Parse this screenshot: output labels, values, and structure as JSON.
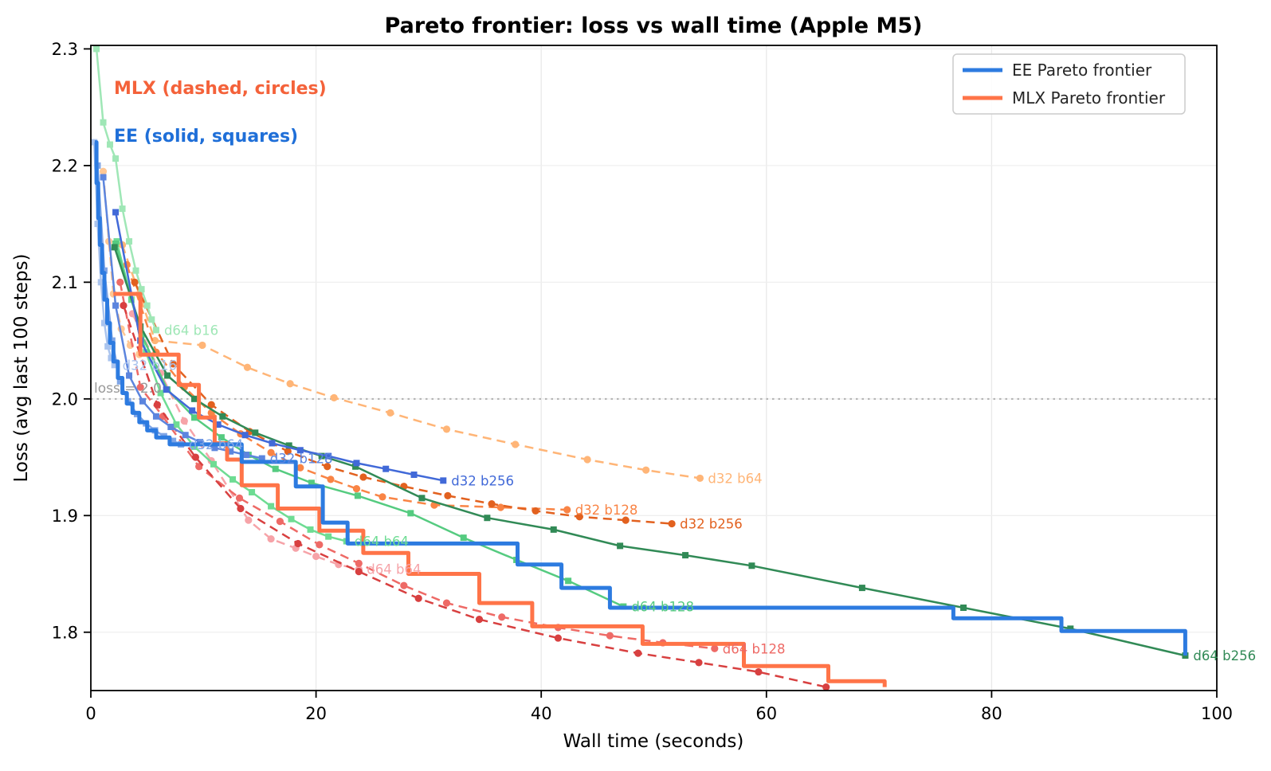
{
  "title": "Pareto frontier: loss vs wall time (Apple M5)",
  "annotations": {
    "mlx": {
      "text": "MLX (dashed, circles)",
      "color": "#f4623a"
    },
    "ee": {
      "text": "EE (solid, squares)",
      "color": "#1f6fd8"
    },
    "loss_line": {
      "text": "loss = 2.0",
      "color": "#999999",
      "y": 2.0
    }
  },
  "legend": [
    {
      "label": "EE Pareto frontier",
      "color": "#2d7be0"
    },
    {
      "label": "MLX Pareto frontier",
      "color": "#ff7448"
    }
  ],
  "chart_data": {
    "type": "line",
    "title": "Pareto frontier: loss vs wall time (Apple M5)",
    "xlabel": "Wall time (seconds)",
    "ylabel": "Loss (avg last 100 steps)",
    "xlim": [
      0,
      100
    ],
    "ylim": [
      1.75,
      2.303
    ],
    "xticks": [
      0,
      20,
      40,
      60,
      80,
      100
    ],
    "yticks": [
      1.8,
      1.9,
      2.0,
      2.1,
      2.2,
      2.3
    ],
    "grid": true,
    "legend_position": "upper right",
    "reference_line": {
      "y": 2.0,
      "style": "dotted",
      "color": "#b0b0b0"
    },
    "frontiers": [
      {
        "name": "MLX Pareto frontier",
        "color": "#ff7448",
        "width": 5,
        "steps": [
          [
            2.0,
            2.09
          ],
          [
            4.4,
            2.038
          ],
          [
            7.8,
            2.012
          ],
          [
            9.6,
            1.984
          ],
          [
            11.0,
            1.962
          ],
          [
            12.1,
            1.948
          ],
          [
            13.4,
            1.926
          ],
          [
            16.6,
            1.906
          ],
          [
            20.3,
            1.887
          ],
          [
            24.2,
            1.868
          ],
          [
            28.2,
            1.85
          ],
          [
            34.5,
            1.825
          ],
          [
            39.2,
            1.805
          ],
          [
            49.0,
            1.79
          ],
          [
            58.0,
            1.771
          ],
          [
            65.5,
            1.758
          ],
          [
            70.5,
            1.753
          ]
        ]
      },
      {
        "name": "EE Pareto frontier",
        "color": "#2d7be0",
        "width": 5,
        "steps": [
          [
            0.35,
            2.22
          ],
          [
            0.5,
            2.185
          ],
          [
            0.65,
            2.155
          ],
          [
            0.8,
            2.132
          ],
          [
            1.0,
            2.108
          ],
          [
            1.2,
            2.085
          ],
          [
            1.45,
            2.065
          ],
          [
            1.7,
            2.048
          ],
          [
            2.0,
            2.032
          ],
          [
            2.4,
            2.018
          ],
          [
            2.8,
            2.005
          ],
          [
            3.2,
            1.996
          ],
          [
            3.7,
            1.988
          ],
          [
            4.3,
            1.98
          ],
          [
            5.0,
            1.973
          ],
          [
            5.8,
            1.967
          ],
          [
            7.0,
            1.961
          ],
          [
            13.4,
            1.946
          ],
          [
            18.2,
            1.925
          ],
          [
            20.6,
            1.894
          ],
          [
            22.8,
            1.876
          ],
          [
            37.9,
            1.858
          ],
          [
            41.8,
            1.838
          ],
          [
            46.1,
            1.821
          ],
          [
            76.6,
            1.812
          ],
          [
            86.2,
            1.801
          ],
          [
            97.2,
            1.78
          ]
        ]
      }
    ],
    "series": [
      {
        "name": "MLX d32 b16",
        "label": "",
        "engine": "MLX",
        "style": "dashed",
        "marker": "circle",
        "color": "#ffc794",
        "points": [
          [
            1.1,
            2.195
          ],
          [
            1.6,
            2.135
          ],
          [
            2.0,
            2.09
          ],
          [
            2.7,
            2.06
          ],
          [
            3.5,
            2.046
          ],
          [
            4.3,
            2.038
          ]
        ]
      },
      {
        "name": "MLX d32 b64",
        "label": "d32 b64",
        "engine": "MLX",
        "style": "dashed",
        "marker": "circle",
        "color": "#ffb577",
        "points": [
          [
            2.8,
            2.132
          ],
          [
            5.7,
            2.05
          ],
          [
            9.9,
            2.046
          ],
          [
            13.9,
            2.027
          ],
          [
            17.7,
            2.013
          ],
          [
            21.6,
            2.001
          ],
          [
            26.6,
            1.988
          ],
          [
            31.6,
            1.974
          ],
          [
            37.7,
            1.961
          ],
          [
            44.1,
            1.948
          ],
          [
            49.3,
            1.939
          ],
          [
            54.1,
            1.932
          ]
        ]
      },
      {
        "name": "MLX d32 b128",
        "label": "d32 b128",
        "engine": "MLX",
        "style": "dashed",
        "marker": "circle",
        "color": "#f98445",
        "points": [
          [
            3.2,
            2.115
          ],
          [
            5.8,
            2.04
          ],
          [
            8.3,
            2.01
          ],
          [
            10.7,
            1.988
          ],
          [
            13.3,
            1.97
          ],
          [
            16.0,
            1.954
          ],
          [
            18.6,
            1.941
          ],
          [
            21.3,
            1.931
          ],
          [
            23.6,
            1.923
          ],
          [
            25.9,
            1.916
          ],
          [
            30.5,
            1.909
          ],
          [
            36.4,
            1.907
          ],
          [
            42.3,
            1.905
          ]
        ]
      },
      {
        "name": "MLX d32 b256",
        "label": "d32 b256",
        "engine": "MLX",
        "style": "dashed",
        "marker": "circle",
        "color": "#e2611f",
        "points": [
          [
            3.9,
            2.1
          ],
          [
            7.3,
            2.03
          ],
          [
            10.7,
            1.995
          ],
          [
            14.1,
            1.972
          ],
          [
            17.5,
            1.955
          ],
          [
            21.0,
            1.942
          ],
          [
            24.2,
            1.933
          ],
          [
            27.8,
            1.925
          ],
          [
            31.7,
            1.917
          ],
          [
            35.6,
            1.91
          ],
          [
            39.5,
            1.904
          ],
          [
            43.4,
            1.899
          ],
          [
            47.5,
            1.896
          ],
          [
            51.6,
            1.893
          ]
        ]
      },
      {
        "name": "MLX d64 b64",
        "label": "d64 b64",
        "engine": "MLX",
        "style": "dashed",
        "marker": "circle",
        "color": "#f6a3a8",
        "points": [
          [
            3.7,
            2.073
          ],
          [
            6.2,
            2.022
          ],
          [
            8.3,
            1.981
          ],
          [
            10.7,
            1.947
          ],
          [
            14.0,
            1.896
          ],
          [
            16.0,
            1.88
          ],
          [
            18.2,
            1.872
          ],
          [
            20.0,
            1.865
          ],
          [
            22.0,
            1.858
          ],
          [
            23.8,
            1.854
          ]
        ]
      },
      {
        "name": "MLX d64 b128",
        "label": "d64 b128",
        "engine": "MLX",
        "style": "dashed",
        "marker": "circle",
        "color": "#ee6a66",
        "points": [
          [
            2.6,
            2.1
          ],
          [
            4.4,
            2.01
          ],
          [
            6.4,
            1.985
          ],
          [
            9.6,
            1.942
          ],
          [
            13.2,
            1.915
          ],
          [
            16.8,
            1.895
          ],
          [
            20.3,
            1.875
          ],
          [
            23.8,
            1.859
          ],
          [
            27.8,
            1.84
          ],
          [
            31.6,
            1.825
          ],
          [
            36.5,
            1.813
          ],
          [
            41.5,
            1.804
          ],
          [
            46.1,
            1.797
          ],
          [
            50.8,
            1.791
          ],
          [
            55.4,
            1.786
          ]
        ]
      },
      {
        "name": "MLX d64 b256",
        "label": "",
        "engine": "MLX",
        "style": "dashed",
        "marker": "circle",
        "color": "#d84040",
        "points": [
          [
            2.9,
            2.08
          ],
          [
            5.9,
            1.995
          ],
          [
            9.3,
            1.95
          ],
          [
            13.3,
            1.906
          ],
          [
            18.4,
            1.876
          ],
          [
            23.8,
            1.852
          ],
          [
            29.1,
            1.829
          ],
          [
            34.5,
            1.811
          ],
          [
            41.5,
            1.795
          ],
          [
            48.6,
            1.782
          ],
          [
            54.0,
            1.774
          ],
          [
            59.3,
            1.766
          ],
          [
            65.3,
            1.753
          ]
        ]
      },
      {
        "name": "EE d64 b16",
        "label": "d64 b16",
        "engine": "EE",
        "style": "solid",
        "marker": "square",
        "color": "#9fe7b6",
        "points": [
          [
            0.5,
            2.3
          ],
          [
            1.1,
            2.237
          ],
          [
            1.7,
            2.218
          ],
          [
            2.2,
            2.206
          ],
          [
            2.8,
            2.163
          ],
          [
            3.4,
            2.135
          ],
          [
            4.0,
            2.11
          ],
          [
            4.5,
            2.094
          ],
          [
            5.0,
            2.08
          ],
          [
            5.4,
            2.068
          ],
          [
            5.8,
            2.059
          ]
        ]
      },
      {
        "name": "EE d64 b64",
        "label": "d64 b64",
        "engine": "EE",
        "style": "solid",
        "marker": "square",
        "color": "#6edc93",
        "points": [
          [
            2.3,
            2.135
          ],
          [
            3.6,
            2.085
          ],
          [
            4.9,
            2.04
          ],
          [
            6.2,
            2.005
          ],
          [
            7.6,
            1.978
          ],
          [
            9.2,
            1.959
          ],
          [
            10.9,
            1.944
          ],
          [
            12.6,
            1.931
          ],
          [
            14.3,
            1.92
          ],
          [
            16.0,
            1.908
          ],
          [
            17.8,
            1.897
          ],
          [
            19.5,
            1.888
          ],
          [
            21.1,
            1.882
          ],
          [
            22.7,
            1.878
          ]
        ]
      },
      {
        "name": "EE d64 b128",
        "label": "d64 b128",
        "engine": "EE",
        "style": "solid",
        "marker": "square",
        "color": "#55cb80",
        "points": [
          [
            2.2,
            2.133
          ],
          [
            4.5,
            2.055
          ],
          [
            6.8,
            2.008
          ],
          [
            9.2,
            1.984
          ],
          [
            11.6,
            1.967
          ],
          [
            14.0,
            1.952
          ],
          [
            16.4,
            1.94
          ],
          [
            19.6,
            1.928
          ],
          [
            23.7,
            1.917
          ],
          [
            28.4,
            1.902
          ],
          [
            33.1,
            1.881
          ],
          [
            37.8,
            1.862
          ],
          [
            42.4,
            1.844
          ],
          [
            47.3,
            1.822
          ]
        ]
      },
      {
        "name": "EE d64 b256",
        "label": "d64 b256",
        "engine": "EE",
        "style": "solid",
        "marker": "square",
        "color": "#318a56",
        "points": [
          [
            2.1,
            2.13
          ],
          [
            4.4,
            2.062
          ],
          [
            6.8,
            2.02
          ],
          [
            9.2,
            2.0
          ],
          [
            11.7,
            1.985
          ],
          [
            14.6,
            1.971
          ],
          [
            17.6,
            1.96
          ],
          [
            20.5,
            1.951
          ],
          [
            23.5,
            1.942
          ],
          [
            29.4,
            1.915
          ],
          [
            35.2,
            1.898
          ],
          [
            41.1,
            1.888
          ],
          [
            47.0,
            1.874
          ],
          [
            52.8,
            1.866
          ],
          [
            58.7,
            1.857
          ],
          [
            68.5,
            1.838
          ],
          [
            77.5,
            1.821
          ],
          [
            87.0,
            1.803
          ],
          [
            97.2,
            1.78
          ]
        ]
      },
      {
        "name": "EE d32 b16",
        "label": "d32 b16",
        "engine": "EE",
        "style": "solid",
        "marker": "square",
        "color": "#aac4ee",
        "points": [
          [
            0.3,
            2.22
          ],
          [
            0.6,
            2.15
          ],
          [
            0.9,
            2.1
          ],
          [
            1.2,
            2.065
          ],
          [
            1.5,
            2.045
          ],
          [
            1.8,
            2.035
          ],
          [
            2.1,
            2.029
          ]
        ]
      },
      {
        "name": "EE d32 b64",
        "label": "d32 b64",
        "engine": "EE",
        "style": "solid",
        "marker": "square",
        "color": "#7fa5e6",
        "points": [
          [
            0.6,
            2.2
          ],
          [
            1.2,
            2.11
          ],
          [
            1.9,
            2.05
          ],
          [
            2.6,
            2.015
          ],
          [
            3.3,
            1.998
          ],
          [
            4.1,
            1.987
          ],
          [
            4.9,
            1.979
          ],
          [
            5.7,
            1.973
          ],
          [
            6.5,
            1.968
          ],
          [
            7.3,
            1.964
          ],
          [
            8.0,
            1.961
          ]
        ]
      },
      {
        "name": "EE d32 b128",
        "label": "d32 b128",
        "engine": "EE",
        "style": "solid",
        "marker": "square",
        "color": "#5c85de",
        "points": [
          [
            1.1,
            2.19
          ],
          [
            2.2,
            2.08
          ],
          [
            3.4,
            2.02
          ],
          [
            4.6,
            1.998
          ],
          [
            5.8,
            1.985
          ],
          [
            7.1,
            1.976
          ],
          [
            8.4,
            1.969
          ],
          [
            9.7,
            1.963
          ],
          [
            11.0,
            1.958
          ],
          [
            12.4,
            1.955
          ],
          [
            13.8,
            1.952
          ],
          [
            15.2,
            1.949
          ]
        ]
      },
      {
        "name": "EE d32 b256",
        "label": "d32 b256",
        "engine": "EE",
        "style": "solid",
        "marker": "square",
        "color": "#4169d8",
        "points": [
          [
            2.2,
            2.16
          ],
          [
            4.4,
            2.05
          ],
          [
            6.7,
            2.008
          ],
          [
            9.0,
            1.99
          ],
          [
            11.3,
            1.978
          ],
          [
            13.7,
            1.969
          ],
          [
            16.1,
            1.962
          ],
          [
            18.6,
            1.956
          ],
          [
            21.1,
            1.951
          ],
          [
            23.6,
            1.945
          ],
          [
            26.2,
            1.94
          ],
          [
            28.7,
            1.935
          ],
          [
            31.3,
            1.93
          ]
        ]
      }
    ]
  }
}
